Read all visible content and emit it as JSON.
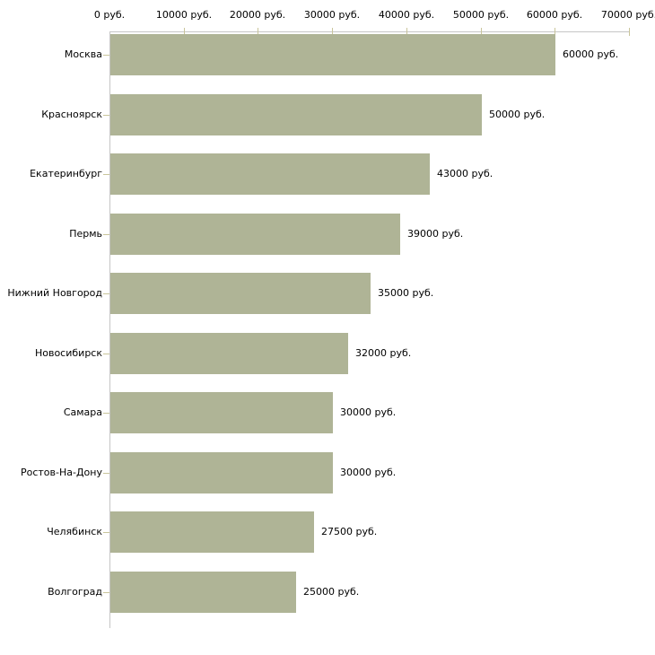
{
  "chart": {
    "bar_color": "#afb496",
    "axis_color": "#c6c6c6",
    "tick_color": "#c9c59b",
    "text_color": "#000000",
    "background_color": "#ffffff"
  },
  "chart_data": {
    "type": "bar",
    "orientation": "horizontal",
    "title": "",
    "xlabel": "",
    "ylabel": "",
    "xlim": [
      0,
      70000
    ],
    "grid": false,
    "legend": false,
    "x_tick_values": [
      0,
      10000,
      20000,
      30000,
      40000,
      50000,
      60000,
      70000
    ],
    "x_tick_labels": [
      "0 руб.",
      "10000 руб.",
      "20000 руб.",
      "30000 руб.",
      "40000 руб.",
      "50000 руб.",
      "60000 руб.",
      "70000 руб."
    ],
    "categories": [
      "Москва",
      "Красноярск",
      "Екатеринбург",
      "Пермь",
      "Нижний Новгород",
      "Новосибирск",
      "Самара",
      "Ростов-На-Дону",
      "Челябинск",
      "Волгоград"
    ],
    "values": [
      60000,
      50000,
      43000,
      39000,
      35000,
      32000,
      30000,
      30000,
      27500,
      25000
    ],
    "value_labels": [
      "60000 руб.",
      "50000 руб.",
      "43000 руб.",
      "39000 руб.",
      "35000 руб.",
      "32000 руб.",
      "30000 руб.",
      "30000 руб.",
      "27500 руб.",
      "25000 руб."
    ]
  }
}
